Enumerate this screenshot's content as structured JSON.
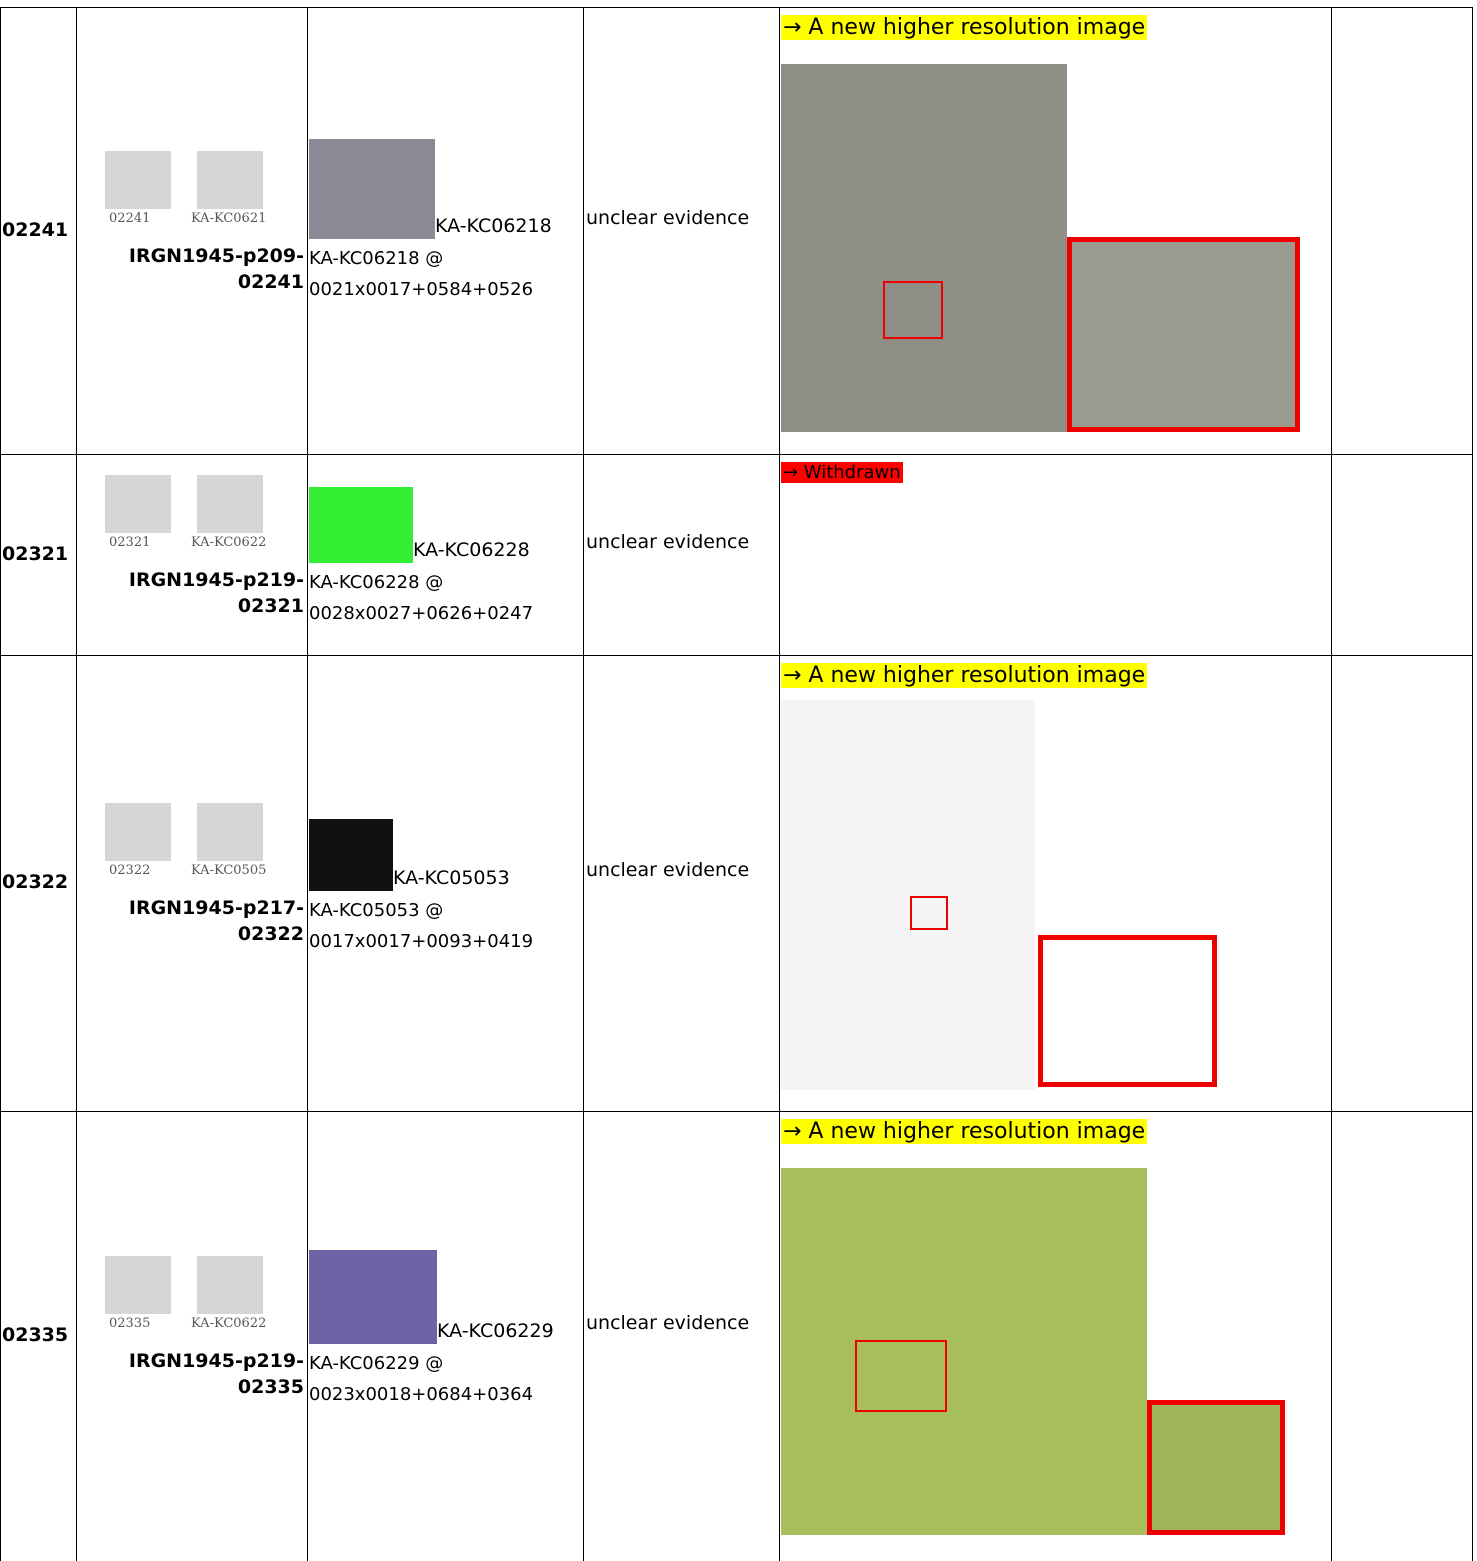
{
  "table": {
    "rows": [
      {
        "id": "02241",
        "glyph_captions": [
          "02241",
          "KA-KC0621"
        ],
        "source": "IRGN1945-p209-02241",
        "evidence_label": "KA-KC06218",
        "evidence_ref": "KA-KC06218 @ 0021x0017+0584+0526",
        "comment": "unclear evidence",
        "note": "→ A new higher resolution image"
      },
      {
        "id": "02321",
        "glyph_captions": [
          "02321",
          "KA-KC0622"
        ],
        "source": "IRGN1945-p219-02321",
        "evidence_label": "KA-KC06228",
        "evidence_ref": "KA-KC06228 @ 0028x0027+0626+0247",
        "comment": "unclear evidence",
        "note": "→ Withdrawn"
      },
      {
        "id": "02322",
        "glyph_captions": [
          "02322",
          "KA-KC0505"
        ],
        "source": "IRGN1945-p217-02322",
        "evidence_label": "KA-KC05053",
        "evidence_ref": "KA-KC05053 @ 0017x0017+0093+0419",
        "comment": "unclear evidence",
        "note": "→ A new higher resolution image"
      },
      {
        "id": "02335",
        "glyph_captions": [
          "02335",
          "KA-KC0622"
        ],
        "source": "IRGN1945-p219-02335",
        "evidence_label": "KA-KC06229",
        "evidence_ref": "KA-KC06229 @ 0023x0018+0684+0364",
        "comment": "unclear evidence",
        "note": "→ A new higher resolution image"
      }
    ]
  }
}
